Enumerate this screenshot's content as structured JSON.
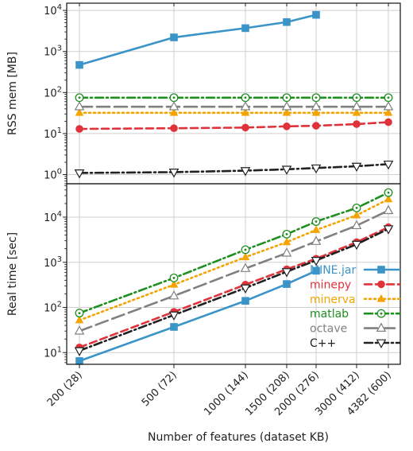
{
  "chart_data": {
    "type": "line",
    "xlabel": "Number of features (dataset KB)",
    "x": [
      200,
      500,
      1000,
      1500,
      2000,
      3000,
      4382
    ],
    "x_tick_labels": [
      "200 (28)",
      "500 (72)",
      "1000 (144)",
      "1500 (208)",
      "2000 (276)",
      "3000 (412)",
      "4382 (600)"
    ],
    "x_scale": "log",
    "grid": true,
    "legend_position": "lower right of bottom panel",
    "panels": [
      {
        "ylabel": "RSS mem [MB]",
        "y_scale": "log",
        "ylim": [
          0.6,
          15000
        ],
        "y_ticks": [
          1,
          10,
          100,
          1000,
          10000
        ],
        "y_tick_labels": [
          "10^0",
          "10^1",
          "10^2",
          "10^3",
          "10^4"
        ],
        "series": [
          {
            "name": "MINE.jar",
            "values": [
              470,
              2200,
              3700,
              5200,
              7800,
              null,
              null
            ]
          },
          {
            "name": "minepy",
            "values": [
              13,
              13.5,
              14,
              15,
              15.5,
              17,
              19
            ]
          },
          {
            "name": "minerva",
            "values": [
              32,
              32,
              32,
              32,
              32,
              32,
              32
            ]
          },
          {
            "name": "matlab",
            "values": [
              75,
              75,
              75,
              75,
              75,
              75,
              75
            ]
          },
          {
            "name": "octave",
            "values": [
              45,
              45,
              45,
              45,
              45,
              45,
              45
            ]
          },
          {
            "name": "C++",
            "values": [
              1.1,
              1.15,
              1.25,
              1.35,
              1.45,
              1.6,
              1.8
            ]
          }
        ]
      },
      {
        "ylabel": "Real time [sec]",
        "y_scale": "log",
        "ylim": [
          5.5,
          55000
        ],
        "y_ticks": [
          10,
          100,
          1000,
          10000
        ],
        "y_tick_labels": [
          "10^1",
          "10^2",
          "10^3",
          "10^4"
        ],
        "series": [
          {
            "name": "MINE.jar",
            "values": [
              6.5,
              37,
              140,
              330,
              650,
              null,
              null
            ]
          },
          {
            "name": "minepy",
            "values": [
              13,
              80,
              320,
              700,
              1200,
              2800,
              6000
            ]
          },
          {
            "name": "minerva",
            "values": [
              52,
              320,
              1300,
              2800,
              5200,
              11000,
              25000
            ]
          },
          {
            "name": "matlab",
            "values": [
              75,
              450,
              1900,
              4200,
              8000,
              16000,
              35000
            ]
          },
          {
            "name": "octave",
            "values": [
              30,
              180,
              730,
              1600,
              2900,
              6500,
              14000
            ]
          },
          {
            "name": "C++",
            "values": [
              11,
              68,
              270,
              620,
              1100,
              2500,
              5500
            ]
          }
        ]
      }
    ],
    "legend": [
      "MINE.jar",
      "minepy",
      "minerva",
      "matlab",
      "octave",
      "C++"
    ],
    "series_styles": {
      "MINE.jar": {
        "color": "#3a94c8",
        "dash": "solid",
        "marker": "square"
      },
      "minepy": {
        "color": "#e0323a",
        "dash": "dashed",
        "marker": "circle"
      },
      "minerva": {
        "color": "#f5a300",
        "dash": "dotted",
        "marker": "triangle-up"
      },
      "matlab": {
        "color": "#1f8f1f",
        "dash": "dash-dot",
        "marker": "circle-dot-open"
      },
      "octave": {
        "color": "#808080",
        "dash": "long-dash",
        "marker": "triangle-up-open"
      },
      "C++": {
        "color": "#222222",
        "dash": "dash-dot",
        "marker": "triangle-down-open"
      }
    }
  }
}
